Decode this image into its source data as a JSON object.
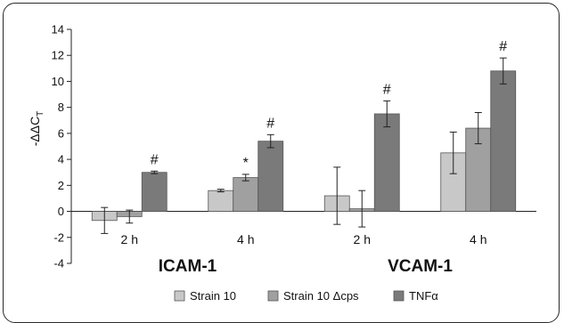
{
  "chart_data": {
    "type": "bar",
    "ylabel": "-ΔΔC",
    "ylabel_sub": "T",
    "ylim": [
      -4,
      14
    ],
    "yticks": [
      -4,
      -2,
      0,
      2,
      4,
      6,
      8,
      10,
      12,
      14
    ],
    "groups": [
      {
        "label": "ICAM-1",
        "categories": [
          "2 h",
          "4 h"
        ]
      },
      {
        "label": "VCAM-1",
        "categories": [
          "2 h",
          "4 h"
        ]
      }
    ],
    "categories": [
      "2 h",
      "4 h",
      "2 h",
      "4 h"
    ],
    "series": [
      {
        "name": "Strain 10",
        "color": "#c8c8c8",
        "values": [
          -0.7,
          1.6,
          1.2,
          4.5
        ],
        "errors": [
          1.0,
          0.1,
          2.2,
          1.6
        ]
      },
      {
        "name": "Strain 10 Δcps",
        "color": "#a0a0a0",
        "values": [
          -0.4,
          2.6,
          0.2,
          6.4
        ],
        "errors": [
          0.5,
          0.25,
          1.4,
          1.2
        ]
      },
      {
        "name": "TNFα",
        "color": "#7a7a7a",
        "values": [
          3.0,
          5.4,
          7.5,
          10.8
        ],
        "errors": [
          0.1,
          0.5,
          1.0,
          1.0
        ]
      }
    ],
    "annotations": [
      {
        "category": 0,
        "series": 2,
        "text": "#"
      },
      {
        "category": 1,
        "series": 1,
        "text": "*"
      },
      {
        "category": 1,
        "series": 2,
        "text": "#"
      },
      {
        "category": 2,
        "series": 2,
        "text": "#"
      },
      {
        "category": 3,
        "series": 2,
        "text": "#"
      }
    ],
    "legend_position": "bottom",
    "grid": false
  }
}
